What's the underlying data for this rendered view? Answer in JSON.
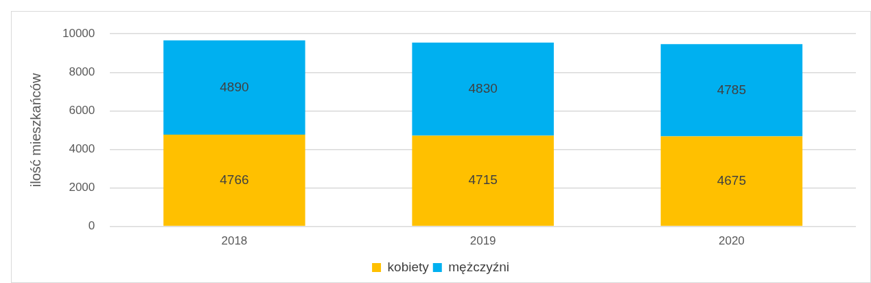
{
  "chart_data": {
    "type": "bar",
    "stacked": true,
    "ylabel": "ilość mieszkańców",
    "categories": [
      "2018",
      "2019",
      "2020"
    ],
    "series": [
      {
        "name": "kobiety",
        "color": "#ffc000",
        "values": [
          4766,
          4715,
          4675
        ]
      },
      {
        "name": "mężczyźni",
        "color": "#00b0f0",
        "values": [
          4890,
          4830,
          4785
        ]
      }
    ],
    "ylim": [
      0,
      10000
    ],
    "yticks": [
      0,
      2000,
      4000,
      6000,
      8000,
      10000
    ],
    "grid": "y",
    "legend": "bottom",
    "data_labels": true
  }
}
